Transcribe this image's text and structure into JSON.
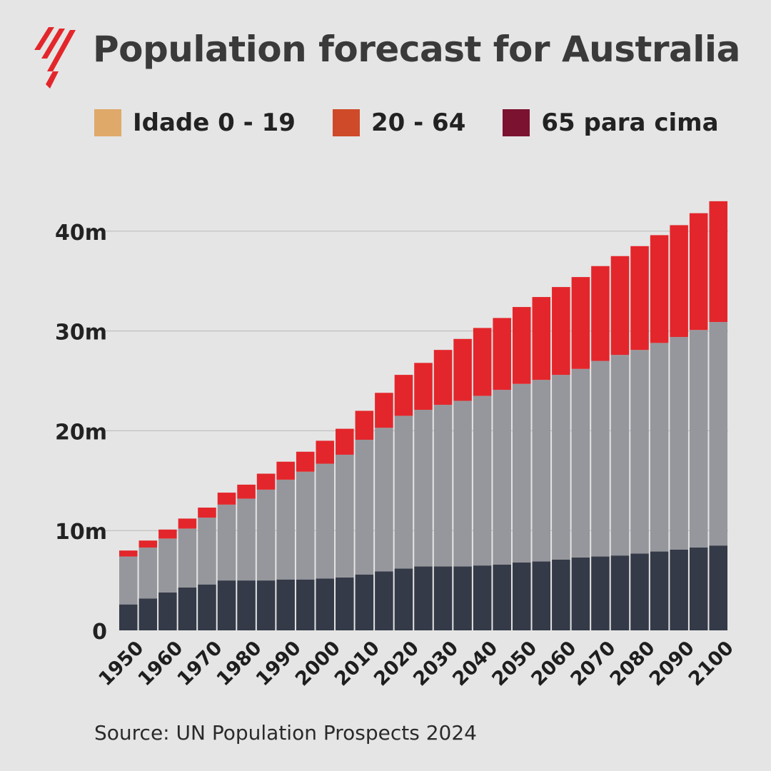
{
  "title": "Population forecast for Australia",
  "legend": [
    {
      "label": "Idade 0 - 19",
      "color": "#dfa96a"
    },
    {
      "label": "20 - 64",
      "color": "#cf4a28"
    },
    {
      "label": "65 para cima",
      "color": "#7a1230"
    }
  ],
  "source": "Source: UN Population Prospects 2024",
  "colors": {
    "background": "#e5e5e5",
    "logo": "#e3262b",
    "grid": "#b9b9b9"
  },
  "chart_data": {
    "type": "bar",
    "stacked": true,
    "categories": [
      "1950",
      "1955",
      "1960",
      "1965",
      "1970",
      "1975",
      "1980",
      "1985",
      "1990",
      "1995",
      "2000",
      "2005",
      "2010",
      "2015",
      "2020",
      "2025",
      "2030",
      "2035",
      "2040",
      "2045",
      "2050",
      "2055",
      "2060",
      "2065",
      "2070",
      "2075",
      "2080",
      "2085",
      "2090",
      "2095",
      "2100"
    ],
    "x_tick_labels": [
      "1950",
      "1960",
      "1970",
      "1980",
      "1990",
      "2000",
      "2010",
      "2020",
      "2030",
      "2040",
      "2050",
      "2060",
      "2070",
      "2080",
      "2090",
      "2100"
    ],
    "y_ticks": [
      0,
      10,
      20,
      30,
      40
    ],
    "y_tick_labels": [
      "0",
      "10m",
      "20m",
      "30m",
      "40m"
    ],
    "ylim": [
      0,
      43
    ],
    "grid": true,
    "series": [
      {
        "color": "#343a47",
        "values": [
          2.6,
          3.2,
          3.8,
          4.3,
          4.6,
          5.0,
          5.0,
          5.0,
          5.1,
          5.1,
          5.2,
          5.3,
          5.6,
          5.9,
          6.2,
          6.4,
          6.4,
          6.4,
          6.5,
          6.6,
          6.8,
          6.9,
          7.1,
          7.3,
          7.4,
          7.5,
          7.7,
          7.9,
          8.1,
          8.3,
          8.5
        ]
      },
      {
        "color": "#96979c",
        "values": [
          4.8,
          5.1,
          5.4,
          5.9,
          6.7,
          7.6,
          8.2,
          9.1,
          10.0,
          10.8,
          11.5,
          12.3,
          13.5,
          14.4,
          15.3,
          15.7,
          16.2,
          16.6,
          17.0,
          17.5,
          17.9,
          18.2,
          18.5,
          18.9,
          19.6,
          20.1,
          20.4,
          20.9,
          21.3,
          21.8,
          22.4
        ]
      },
      {
        "color": "#e3262b",
        "values": [
          0.6,
          0.7,
          0.9,
          1.0,
          1.0,
          1.2,
          1.4,
          1.6,
          1.8,
          2.0,
          2.3,
          2.6,
          2.9,
          3.5,
          4.1,
          4.7,
          5.5,
          6.2,
          6.8,
          7.2,
          7.7,
          8.3,
          8.8,
          9.2,
          9.5,
          9.9,
          10.4,
          10.8,
          11.2,
          11.7,
          12.1
        ]
      }
    ]
  }
}
